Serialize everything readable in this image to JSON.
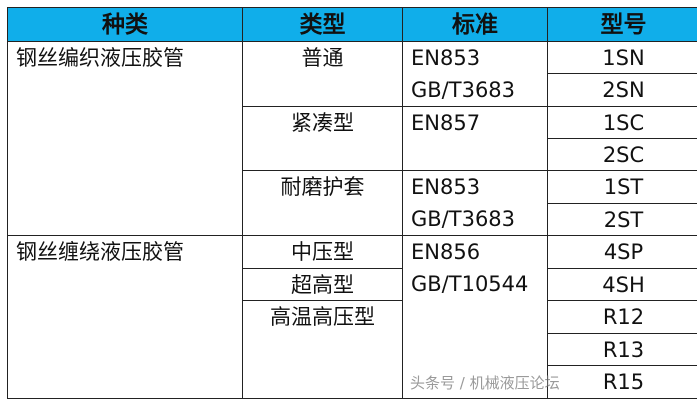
{
  "headers": [
    "种类",
    "类型",
    "标准",
    "型号"
  ],
  "groups": [
    {
      "kind": "钢丝编织液压胶管",
      "types": [
        "普通",
        "紧凑型",
        "耐磨护套"
      ],
      "standards": [
        [
          "EN853",
          "GB/T3683"
        ],
        [
          "EN857"
        ],
        [
          "EN853",
          "GB/T3683"
        ]
      ]
    },
    {
      "kind": "钢丝缠绕液压胶管",
      "types": [
        "中压型",
        "超高型",
        "高温高压型"
      ],
      "standards": [
        [
          "EN856",
          "GB/T10544"
        ]
      ]
    }
  ],
  "models": [
    "1SN",
    "2SN",
    "1SC",
    "2SC",
    "1ST",
    "2ST",
    "4SP",
    "4SH",
    "R12",
    "R13",
    "R15"
  ],
  "watermark": "头条号 / 机械液压论坛",
  "colors": {
    "header_bg": "#10aeea",
    "border": "#222222"
  }
}
